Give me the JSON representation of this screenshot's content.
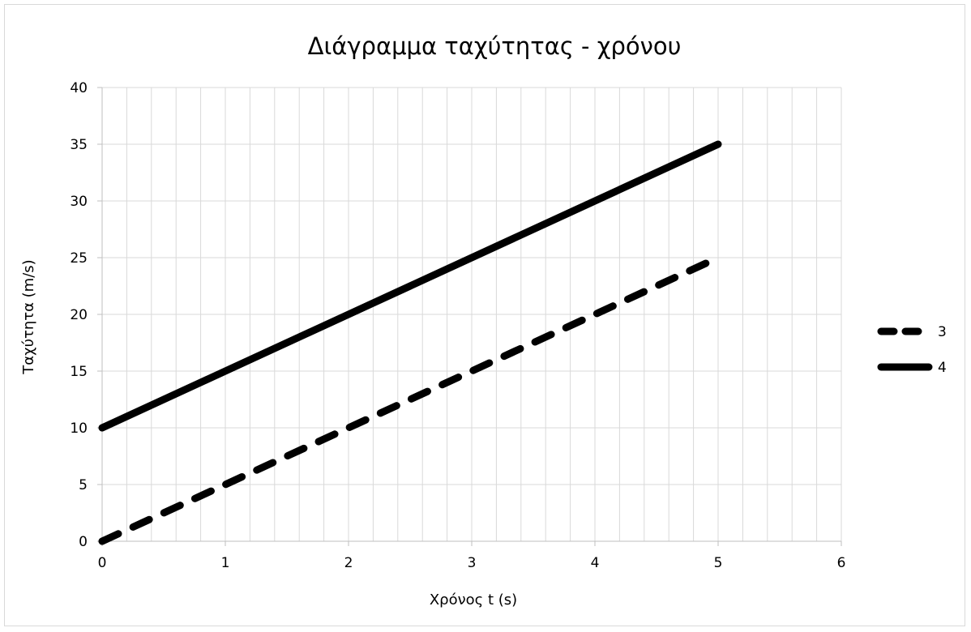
{
  "chart_data": {
    "type": "line",
    "title": "Διάγραμμα ταχύτητας - χρόνου",
    "xlabel": "Χρόνος t (s)",
    "ylabel": "Ταχύτητα (m/s)",
    "xlim": [
      0,
      6
    ],
    "ylim": [
      0,
      40
    ],
    "x_ticks": [
      0,
      1,
      2,
      3,
      4,
      5,
      6
    ],
    "y_ticks": [
      0,
      5,
      10,
      15,
      20,
      25,
      30,
      35,
      40
    ],
    "x_minor_step": 0.2,
    "grid": true,
    "legend_position": "right",
    "series": [
      {
        "name": "3",
        "style": "dashed",
        "color": "#000000",
        "points": [
          [
            0,
            0
          ],
          [
            5,
            25
          ]
        ]
      },
      {
        "name": "4",
        "style": "solid",
        "color": "#000000",
        "points": [
          [
            0,
            10
          ],
          [
            5,
            35
          ]
        ]
      }
    ]
  }
}
